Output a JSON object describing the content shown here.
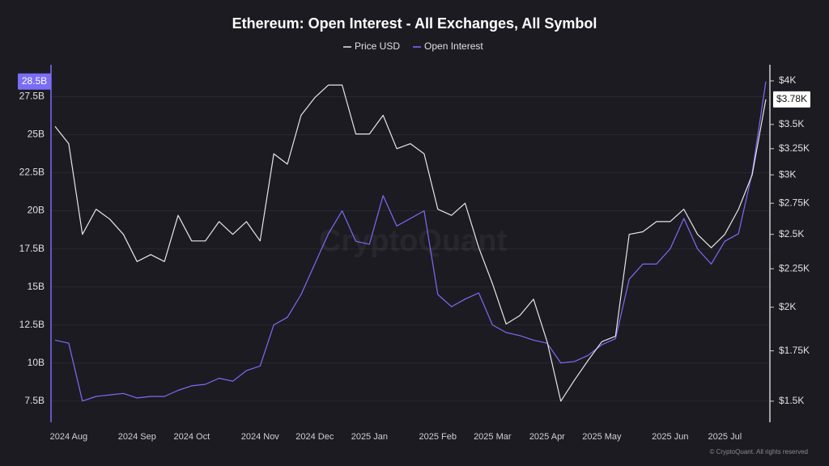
{
  "chart_data": {
    "type": "line",
    "title": "Ethereum: Open Interest - All Exchanges, All Symbol",
    "watermark": "CryptoQuant",
    "footer": "© CryptoQuant. All rights reserved",
    "categories": [
      null,
      "2024 Aug",
      null,
      null,
      null,
      null,
      "2024 Sep",
      null,
      null,
      null,
      "2024 Oct",
      null,
      null,
      null,
      null,
      "2024 Nov",
      null,
      null,
      null,
      "2024 Dec",
      null,
      null,
      null,
      "2025 Jan",
      null,
      null,
      null,
      null,
      "2025 Feb",
      null,
      null,
      null,
      "2025 Mar",
      null,
      null,
      null,
      "2025 Apr",
      null,
      null,
      null,
      "2025 May",
      null,
      null,
      null,
      null,
      "2025 Jun",
      null,
      null,
      null,
      "2025 Jul",
      null,
      null,
      null
    ],
    "series": [
      {
        "name": "Price USD",
        "color": "#e6e6e6",
        "axis": "y2",
        "last_label": "$3.78K",
        "values": [
          3480,
          3300,
          2500,
          2700,
          2620,
          2500,
          2300,
          2350,
          2300,
          2650,
          2450,
          2450,
          2600,
          2500,
          2600,
          2450,
          3200,
          3100,
          3600,
          3800,
          3950,
          3950,
          3400,
          3400,
          3600,
          3250,
          3300,
          3200,
          2700,
          2650,
          2750,
          2400,
          2150,
          1900,
          1950,
          2050,
          1800,
          1500,
          1600,
          1700,
          1800,
          1830,
          2500,
          2520,
          2600,
          2600,
          2700,
          2500,
          2400,
          2500,
          2700,
          3000,
          3780
        ]
      },
      {
        "name": "Open Interest",
        "color": "#7b6cf6",
        "axis": "y",
        "last_label": "28.5B",
        "values": [
          11.5,
          11.3,
          7.5,
          7.8,
          7.9,
          8.0,
          7.7,
          7.8,
          7.8,
          8.2,
          8.5,
          8.6,
          9.0,
          8.8,
          9.5,
          9.8,
          12.5,
          13,
          14.5,
          16.5,
          18.5,
          20.0,
          18.0,
          17.8,
          21.0,
          19.0,
          19.5,
          20.0,
          14.5,
          13.7,
          14.2,
          14.6,
          12.5,
          12.0,
          11.8,
          11.5,
          11.3,
          10.0,
          10.1,
          10.5,
          11.2,
          11.6,
          15.5,
          16.5,
          16.5,
          17.5,
          19.5,
          17.5,
          16.5,
          18.0,
          18.5,
          22.5,
          28.5
        ]
      }
    ],
    "ylim": [
      6.1,
      29.6
    ],
    "yticks": [
      {
        "value": 7.5,
        "label": "7.5B"
      },
      {
        "value": 10,
        "label": "10B"
      },
      {
        "value": 12.5,
        "label": "12.5B"
      },
      {
        "value": 15,
        "label": "15B"
      },
      {
        "value": 17.5,
        "label": "17.5B"
      },
      {
        "value": 20,
        "label": "20B"
      },
      {
        "value": 22.5,
        "label": "22.5B"
      },
      {
        "value": 25,
        "label": "25B"
      },
      {
        "value": 27.5,
        "label": "27.5B"
      }
    ],
    "y2lim": [
      1406,
      4203
    ],
    "y2_log": true,
    "y2ticks": [
      {
        "value": 1500,
        "label": "$1.5K"
      },
      {
        "value": 1750,
        "label": "$1.75K"
      },
      {
        "value": 2000,
        "label": "$2K"
      },
      {
        "value": 2250,
        "label": "$2.25K"
      },
      {
        "value": 2500,
        "label": "$2.5K"
      },
      {
        "value": 2750,
        "label": "$2.75K"
      },
      {
        "value": 3000,
        "label": "$3K"
      },
      {
        "value": 3250,
        "label": "$3.25K"
      },
      {
        "value": 3500,
        "label": "$3.5K"
      },
      {
        "value": 4000,
        "label": "$4K"
      }
    ],
    "grid": true,
    "legend": "top"
  }
}
